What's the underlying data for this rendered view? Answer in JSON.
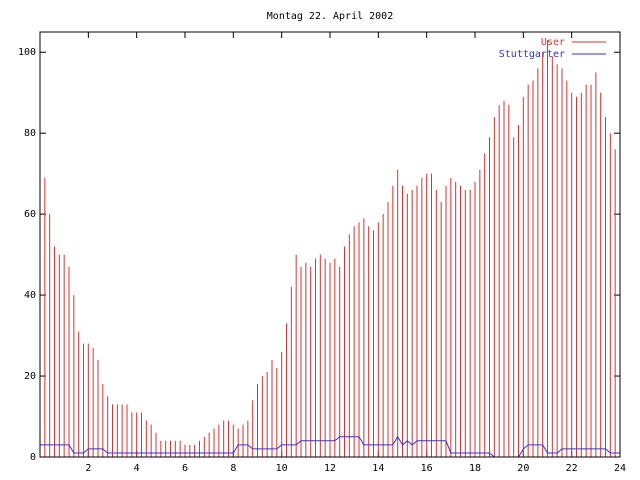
{
  "chart_data": {
    "type": "impulses",
    "title": "Montag 22. April 2002",
    "xlim": [
      0,
      24
    ],
    "ylim": [
      0,
      105
    ],
    "xticks": [
      2,
      4,
      6,
      8,
      10,
      12,
      14,
      16,
      18,
      20,
      22,
      24
    ],
    "yticks": [
      0,
      20,
      40,
      60,
      80,
      100
    ],
    "legend": "top-right",
    "x": [
      0,
      0.2,
      0.4,
      0.6,
      0.8,
      1,
      1.2,
      1.4,
      1.6,
      1.8,
      2,
      2.2,
      2.4,
      2.6,
      2.8,
      3,
      3.2,
      3.4,
      3.6,
      3.8,
      4,
      4.2,
      4.4,
      4.6,
      4.8,
      5,
      5.2,
      5.4,
      5.6,
      5.8,
      6,
      6.2,
      6.4,
      6.6,
      6.8,
      7,
      7.2,
      7.4,
      7.6,
      7.8,
      8,
      8.2,
      8.4,
      8.6,
      8.8,
      9,
      9.2,
      9.4,
      9.6,
      9.8,
      10,
      10.2,
      10.4,
      10.6,
      10.8,
      11,
      11.2,
      11.4,
      11.6,
      11.8,
      12,
      12.2,
      12.4,
      12.6,
      12.8,
      13,
      13.2,
      13.4,
      13.6,
      13.8,
      14,
      14.2,
      14.4,
      14.6,
      14.8,
      15,
      15.2,
      15.4,
      15.6,
      15.8,
      16,
      16.2,
      16.4,
      16.6,
      16.8,
      17,
      17.2,
      17.4,
      17.6,
      17.8,
      18,
      18.2,
      18.4,
      18.6,
      18.8,
      19,
      19.2,
      19.4,
      19.6,
      19.8,
      20,
      20.2,
      20.4,
      20.6,
      20.8,
      21,
      21.2,
      21.4,
      21.6,
      21.8,
      22,
      22.2,
      22.4,
      22.6,
      22.8,
      23,
      23.2,
      23.4,
      23.6,
      23.8,
      24
    ],
    "series": [
      {
        "name": "User",
        "color": "#e03030",
        "style": "impulses",
        "values": [
          77,
          69,
          60,
          52,
          50,
          50,
          47,
          40,
          31,
          28,
          28,
          27,
          24,
          18,
          15,
          13,
          13,
          13,
          13,
          11,
          11,
          11,
          9,
          8,
          6,
          4,
          4,
          4,
          4,
          4,
          3,
          3,
          3,
          4,
          5,
          6,
          7,
          8,
          9,
          9,
          8,
          7,
          8,
          9,
          14,
          18,
          20,
          21,
          24,
          22,
          26,
          33,
          42,
          50,
          47,
          48,
          47,
          49,
          50,
          49,
          48,
          49,
          47,
          52,
          55,
          57,
          58,
          59,
          57,
          56,
          58,
          60,
          63,
          67,
          71,
          67,
          65,
          66,
          67,
          69,
          70,
          70,
          66,
          63,
          67,
          69,
          68,
          67,
          66,
          66,
          68,
          71,
          75,
          79,
          84,
          87,
          88,
          87,
          79,
          82,
          89,
          92,
          93,
          96,
          100,
          103,
          99,
          97,
          96,
          93,
          90,
          89,
          90,
          92,
          92,
          95,
          90,
          84,
          80,
          76,
          72
        ]
      },
      {
        "name": "Stuttgarter",
        "color": "#3030e0",
        "style": "lines",
        "values": [
          3,
          3,
          3,
          3,
          3,
          3,
          3,
          1,
          1,
          1,
          2,
          2,
          2,
          2,
          1,
          1,
          1,
          1,
          1,
          1,
          1,
          1,
          1,
          1,
          1,
          1,
          1,
          1,
          1,
          1,
          1,
          1,
          1,
          1,
          1,
          1,
          1,
          1,
          1,
          1,
          1,
          3,
          3,
          3,
          2,
          2,
          2,
          2,
          2,
          2,
          3,
          3,
          3,
          3,
          4,
          4,
          4,
          4,
          4,
          4,
          4,
          4,
          5,
          5,
          5,
          5,
          5,
          3,
          3,
          3,
          3,
          3,
          3,
          3,
          5,
          3,
          4,
          3,
          4,
          4,
          4,
          4,
          4,
          4,
          4,
          1,
          1,
          1,
          1,
          1,
          1,
          1,
          1,
          1,
          0,
          0,
          0,
          0,
          0,
          0,
          2,
          3,
          3,
          3,
          3,
          1,
          1,
          1,
          2,
          2,
          2,
          2,
          2,
          2,
          2,
          2,
          2,
          2,
          1,
          1,
          1
        ]
      }
    ]
  }
}
